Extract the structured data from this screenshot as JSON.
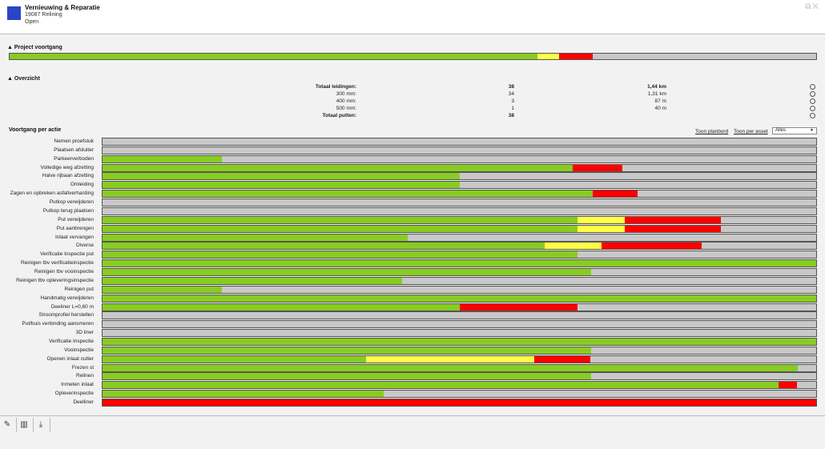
{
  "header": {
    "title": "Vernieuwing & Reparatie",
    "subtitle": "19087 Relining",
    "status": "Open",
    "icons": [
      "restore-icon",
      "close-icon"
    ]
  },
  "colors": {
    "done": "#88cc22",
    "warning": "#ffff44",
    "problem": "#ff0000",
    "remaining": "#c8c8c8"
  },
  "project": {
    "title": "▲ Project voortgang",
    "progress": {
      "green": 0.654,
      "yellow": 0.027,
      "red": 0.042
    }
  },
  "overview": {
    "title": "▲ Overzicht",
    "rows": [
      {
        "label": "Totaal leidingen:",
        "count": "38",
        "length": "1,44 km",
        "bold": true
      },
      {
        "label": "300 mm:",
        "count": "34",
        "length": "1,31 km",
        "bold": false
      },
      {
        "label": "400 mm:",
        "count": "3",
        "length": "87 m",
        "bold": false
      },
      {
        "label": "500 mm:",
        "count": "1",
        "length": "40 m",
        "bold": false
      },
      {
        "label": "Totaal putten:",
        "count": "38",
        "length": "",
        "bold": true
      }
    ]
  },
  "actions_section": {
    "title": "Voortgang per actie",
    "link_planbord": "Toon planbord",
    "link_asset": "Toon per asset",
    "filter_value": "Alles"
  },
  "actions": [
    {
      "label": "Nemen proefstuk",
      "green": 0,
      "yellow": 0,
      "red": 0
    },
    {
      "label": "Plaatsen afsluiter",
      "green": 0,
      "yellow": 0,
      "red": 0
    },
    {
      "label": "Parkeerverboden",
      "green": 0.167,
      "yellow": 0,
      "red": 0
    },
    {
      "label": "Volledige weg afzetting",
      "green": 0.659,
      "yellow": 0,
      "red": 0.069
    },
    {
      "label": "Halve rijbaan afzetting",
      "green": 0.5,
      "yellow": 0,
      "red": 0
    },
    {
      "label": "Omleiding",
      "green": 0.5,
      "yellow": 0,
      "red": 0
    },
    {
      "label": "Zagen en opbreken asfaltverharding",
      "green": 0.687,
      "yellow": 0,
      "red": 0.063
    },
    {
      "label": "Putkop verwijderen",
      "green": 0,
      "yellow": 0,
      "red": 0
    },
    {
      "label": "Putkop terug plaatsen",
      "green": 0,
      "yellow": 0,
      "red": 0
    },
    {
      "label": "Put verwijderen",
      "green": 0.666,
      "yellow": 0.066,
      "red": 0.134
    },
    {
      "label": "Put aanbrengen",
      "green": 0.666,
      "yellow": 0.066,
      "red": 0.134
    },
    {
      "label": "Inlaat vervangen",
      "green": 0.428,
      "yellow": 0,
      "red": 0
    },
    {
      "label": "Diverse",
      "green": 0.619,
      "yellow": 0.08,
      "red": 0.14
    },
    {
      "label": "Verificatie Inspectie put",
      "green": 0.666,
      "yellow": 0,
      "red": 0
    },
    {
      "label": "Reinigen tbv verificatieinspectie",
      "green": 1.0,
      "yellow": 0,
      "red": 0
    },
    {
      "label": "Reinigen tbv vooinspectie",
      "green": 0.685,
      "yellow": 0,
      "red": 0
    },
    {
      "label": "Reinigen tbv opleveringsinspectie",
      "green": 0.42,
      "yellow": 0,
      "red": 0
    },
    {
      "label": "Reinigen put",
      "green": 0.167,
      "yellow": 0,
      "red": 0
    },
    {
      "label": "Handmatig verwijderen",
      "green": 1.0,
      "yellow": 0,
      "red": 0
    },
    {
      "label": "Deeliner L=0,60 m",
      "green": 0.5,
      "yellow": 0,
      "red": 0.166
    },
    {
      "label": "Stroomprofiel herstellen",
      "green": 0,
      "yellow": 0,
      "red": 0
    },
    {
      "label": "Put/buis verbinding aansmeren",
      "green": 0,
      "yellow": 0,
      "red": 0
    },
    {
      "label": "3D liner",
      "green": 0,
      "yellow": 0,
      "red": 0
    },
    {
      "label": "Verificatie Inspectie",
      "green": 1.0,
      "yellow": 0,
      "red": 0
    },
    {
      "label": "Vooinspectie",
      "green": 0.685,
      "yellow": 0,
      "red": 0
    },
    {
      "label": "Openen inlaat cutter",
      "green": 0.369,
      "yellow": 0.236,
      "red": 0.079
    },
    {
      "label": "Frezen st",
      "green": 0.974,
      "yellow": 0,
      "red": 0
    },
    {
      "label": "Relinen",
      "green": 0.685,
      "yellow": 0,
      "red": 0
    },
    {
      "label": "Inmeten inlaat",
      "green": 0.947,
      "yellow": 0,
      "red": 0.026
    },
    {
      "label": "Opleverinspectie",
      "green": 0.394,
      "yellow": 0,
      "red": 0
    },
    {
      "label": "Deelliner",
      "green": 0,
      "yellow": 0,
      "red": 1.0
    }
  ],
  "footer": {
    "icons": [
      "edit-icon",
      "book-icon",
      "download-icon"
    ]
  }
}
